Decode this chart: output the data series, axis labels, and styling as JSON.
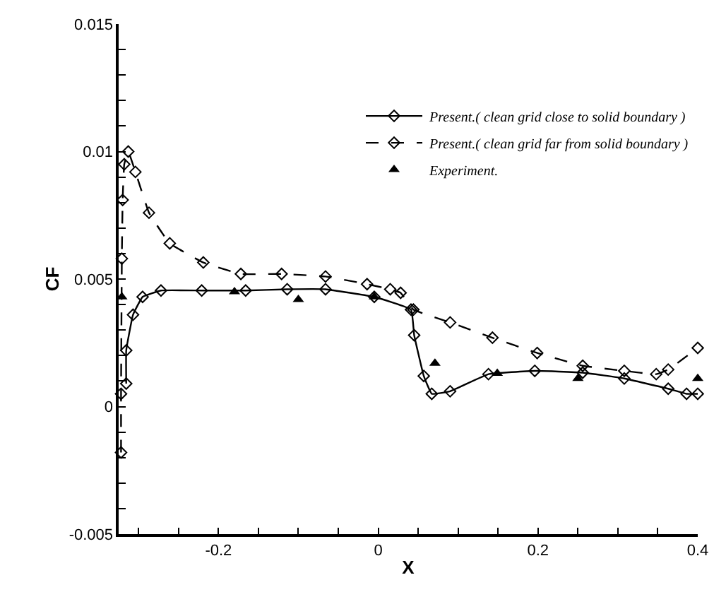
{
  "chart_data": {
    "type": "line",
    "xlabel": "X",
    "ylabel": "CF",
    "xlim": [
      -0.325,
      0.4
    ],
    "ylim": [
      -0.005,
      0.015
    ],
    "xticks": [
      {
        "value": -0.3,
        "label": null
      },
      {
        "value": -0.25,
        "label": null
      },
      -0.2,
      {
        "value": -0.15,
        "label": null
      },
      {
        "value": -0.1,
        "label": null
      },
      {
        "value": -0.05,
        "label": null
      },
      0,
      {
        "value": 0.05,
        "label": null
      },
      {
        "value": 0.1,
        "label": null
      },
      {
        "value": 0.15,
        "label": null
      },
      0.2,
      {
        "value": 0.25,
        "label": null
      },
      {
        "value": 0.3,
        "label": null
      },
      {
        "value": 0.35,
        "label": null
      },
      0.4
    ],
    "yticks": [
      -0.005,
      {
        "value": -0.004,
        "label": null
      },
      {
        "value": -0.003,
        "label": null
      },
      {
        "value": -0.002,
        "label": null
      },
      {
        "value": -0.001,
        "label": null
      },
      0,
      {
        "value": 0.001,
        "label": null
      },
      {
        "value": 0.002,
        "label": null
      },
      {
        "value": 0.003,
        "label": null
      },
      {
        "value": 0.004,
        "label": null
      },
      0.005,
      {
        "value": 0.006,
        "label": null
      },
      {
        "value": 0.007,
        "label": null
      },
      {
        "value": 0.008,
        "label": null
      },
      {
        "value": 0.009,
        "label": null
      },
      0.01,
      {
        "value": 0.011,
        "label": null
      },
      {
        "value": 0.012,
        "label": null
      },
      {
        "value": 0.013,
        "label": null
      },
      {
        "value": 0.014,
        "label": null
      },
      0.015
    ],
    "legend": "top right",
    "series": [
      {
        "name": "Present.( clean grid close to solid boundary )",
        "color": "#000000",
        "line_style": "solid",
        "marker": "diamond",
        "x": [
          -0.3155,
          -0.3155,
          -0.307,
          -0.295,
          -0.272,
          -0.221,
          -0.166,
          -0.114,
          -0.066,
          -0.005,
          0.041,
          0.045,
          0.057,
          0.067,
          0.09,
          0.138,
          0.196,
          0.256,
          0.308,
          0.363,
          0.386,
          0.4
        ],
        "values": [
          0.0009,
          0.0022,
          0.0036,
          0.0043,
          0.00455,
          0.00455,
          0.00455,
          0.0046,
          0.0046,
          0.0043,
          0.0038,
          0.0028,
          0.0012,
          0.0005,
          0.0006,
          0.00127,
          0.0014,
          0.00133,
          0.0011,
          0.0007,
          0.0005,
          0.0005
        ]
      },
      {
        "name": "Present.( clean grid far from solid boundary )",
        "color": "#000000",
        "line_style": "dashed",
        "marker": "diamond",
        "x": [
          -0.322,
          -0.322,
          -0.321,
          -0.32,
          -0.318,
          -0.313,
          -0.304,
          -0.287,
          -0.261,
          -0.219,
          -0.172,
          -0.121,
          -0.066,
          -0.014,
          0.015,
          0.028,
          0.044,
          0.09,
          0.143,
          0.199,
          0.256,
          0.308,
          0.348,
          0.363,
          0.4
        ],
        "values": [
          -0.0018,
          0.0005,
          0.0058,
          0.0081,
          0.0095,
          0.01,
          0.0092,
          0.0076,
          0.0064,
          0.00565,
          0.0052,
          0.0052,
          0.0051,
          0.0048,
          0.0046,
          0.00446,
          0.0038,
          0.0033,
          0.0027,
          0.0021,
          0.0016,
          0.0014,
          0.00127,
          0.00145,
          0.0023
        ]
      },
      {
        "name": "Experiment.",
        "type": "scatter",
        "color": "#000000",
        "marker": "triangle",
        "x": [
          -0.321,
          -0.18,
          -0.1,
          -0.005,
          0.071,
          0.149,
          0.25,
          0.4
        ],
        "values": [
          0.0043,
          0.0045,
          0.0042,
          0.0043,
          0.0017,
          0.0013,
          0.0011,
          0.0011
        ]
      }
    ]
  }
}
